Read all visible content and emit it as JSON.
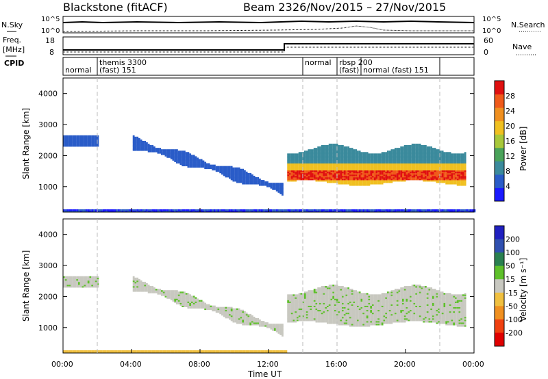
{
  "header": {
    "station": "Blackstone (fitACF)",
    "beam": "Beam 23",
    "dates": "26/Nov/2015 – 27/Nov/2015"
  },
  "noise_panel": {
    "left_label": "N.Sky",
    "right_label": "N.Search",
    "y_ticks": [
      "10^5",
      "10^0"
    ]
  },
  "freq_panel": {
    "left_label_line1": "Freq.",
    "left_label_line2": "[MHz]",
    "left_ticks": [
      "18",
      "8"
    ],
    "right_ticks": [
      "60",
      "0"
    ],
    "right_label": "Nave"
  },
  "cpid_panel": {
    "label": "CPID",
    "segments": [
      {
        "line1": "normal",
        "line2": "",
        "t": 0
      },
      {
        "line1": "themis 3300",
        "line2": "(fast) 151",
        "t": 2.0
      },
      {
        "line1": "normal",
        "line2": "",
        "t": 14.0
      },
      {
        "line1": "rbsp 200",
        "line2": "(fast)",
        "t": 16.0
      },
      {
        "line1": "",
        "line2": "normal (fast)  151",
        "t": 17.4
      },
      {
        "line1": "",
        "line2": "",
        "t": 22.0
      }
    ]
  },
  "x_axis": {
    "label": "Time UT",
    "ticks": [
      "00:00",
      "04:00",
      "08:00",
      "12:00",
      "16:00",
      "20:00",
      "00:00"
    ]
  },
  "chart_data": [
    {
      "type": "heatmap",
      "title": "",
      "xlabel": "Time UT",
      "ylabel": "Slant Range [km]",
      "xlim": [
        0,
        24
      ],
      "ylim": [
        180,
        4500
      ],
      "y_ticks": [
        "1000",
        "2000",
        "3000",
        "4000"
      ],
      "colorbar": {
        "label": "Power [dB]",
        "ticks": [
          "4",
          "8",
          "12",
          "16",
          "20",
          "24",
          "28"
        ],
        "range": [
          0,
          30
        ],
        "colors": [
          "#1a1aff",
          "#2a5cc8",
          "#3b8a9c",
          "#4aa35a",
          "#a8c83a",
          "#f0c020",
          "#f09020",
          "#f05a1a",
          "#e01010"
        ]
      },
      "structures": [
        {
          "name": "ground band",
          "t": [
            0,
            24
          ],
          "range_km": [
            180,
            260
          ]
        },
        {
          "name": "early echoes",
          "t": [
            0,
            2
          ],
          "range_km": [
            2300,
            2600
          ],
          "power_db": 8
        },
        {
          "name": "descending echoes",
          "t": [
            4,
            12.7
          ],
          "range_km_start": 2400,
          "range_km_end": 900,
          "power_db": 8
        },
        {
          "name": "main echo region",
          "t": [
            13,
            23.5
          ],
          "range_km": [
            1100,
            2500
          ],
          "peak_power_db": 28,
          "peak_range_km": 1300
        }
      ]
    },
    {
      "type": "heatmap",
      "title": "",
      "xlabel": "Time UT",
      "ylabel": "Slant Range [km]",
      "xlim": [
        0,
        24
      ],
      "ylim": [
        180,
        4500
      ],
      "y_ticks": [
        "1000",
        "2000",
        "3000",
        "4000"
      ],
      "colorbar": {
        "label": "Velocity [m s⁻¹]",
        "ticks": [
          "200",
          "100",
          "50",
          "15",
          "-15",
          "-50",
          "-100",
          "-200"
        ],
        "range": [
          -250,
          250
        ],
        "colors": [
          "#2020c0",
          "#3050b0",
          "#2a8050",
          "#5ec02a",
          "#c8c8c0",
          "#f0c040",
          "#f09020",
          "#f04010",
          "#e00000"
        ]
      },
      "structures": [
        {
          "name": "ground band",
          "t": [
            0,
            13
          ],
          "range_km": [
            180,
            260
          ],
          "velocity": "-15 to -50"
        },
        {
          "name": "descending echoes",
          "t": [
            4,
            12.7
          ],
          "range_km_start": 2400,
          "range_km_end": 900,
          "velocity": "-15 to 15"
        },
        {
          "name": "main echo region",
          "t": [
            13,
            23.5
          ],
          "range_km": [
            1100,
            2500
          ],
          "velocity": "-15 to 15"
        }
      ]
    }
  ]
}
